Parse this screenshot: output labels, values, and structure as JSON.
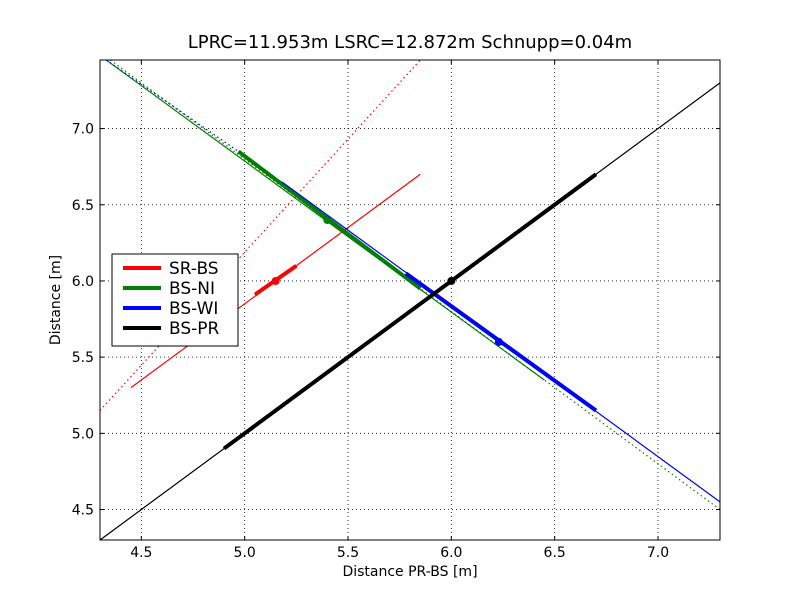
{
  "chart_data": {
    "type": "line",
    "title": "LPRC=11.953m   LSRC=12.872m   Schnupp=0.04m",
    "xlabel": "Distance PR-BS [m]",
    "ylabel": "Distance [m]",
    "xlim": [
      4.3,
      7.3
    ],
    "ylim": [
      4.3,
      7.45
    ],
    "grid": true,
    "legend_position": "center-left",
    "x_ticks": [
      "4.5",
      "5.0",
      "5.5",
      "6.0",
      "6.5",
      "7.0"
    ],
    "y_ticks": [
      "4.5",
      "5.0",
      "5.5",
      "6.0",
      "6.5",
      "7.0"
    ],
    "series": [
      {
        "name": "SR-BS",
        "color": "#ff0000",
        "dotted_line": [
          [
            4.3,
            5.15
          ],
          [
            5.85,
            7.45
          ]
        ],
        "thin_line": [
          [
            4.45,
            5.3
          ],
          [
            5.85,
            6.7
          ]
        ],
        "thick_line": [
          [
            5.05,
            5.91
          ],
          [
            5.25,
            6.1
          ]
        ],
        "marker": [
          5.15,
          6.0
        ]
      },
      {
        "name": "BS-NI",
        "color": "#008000",
        "dotted_line": [
          [
            4.35,
            7.45
          ],
          [
            7.3,
            4.5
          ]
        ],
        "thin_line": [
          [
            4.33,
            7.45
          ],
          [
            6.45,
            5.35
          ]
        ],
        "thick_line": [
          [
            4.97,
            6.85
          ],
          [
            5.85,
            5.95
          ]
        ],
        "marker": [
          5.4,
          6.4
        ]
      },
      {
        "name": "BS-WI",
        "color": "#0000ff",
        "dotted_line": [
          [
            4.33,
            7.45
          ],
          [
            4.97,
            6.85
          ]
        ],
        "thin_line": [
          [
            5.18,
            6.65
          ],
          [
            7.3,
            4.55
          ]
        ],
        "thick_line": [
          [
            5.78,
            6.05
          ],
          [
            6.7,
            5.15
          ]
        ],
        "marker": [
          6.23,
          5.6
        ]
      },
      {
        "name": "BS-PR",
        "color": "#000000",
        "thin_line": [
          [
            4.3,
            4.3
          ],
          [
            7.3,
            7.3
          ]
        ],
        "thick_line": [
          [
            4.9,
            4.9
          ],
          [
            6.7,
            6.7
          ]
        ],
        "marker": [
          6.0,
          6.0
        ]
      }
    ]
  }
}
